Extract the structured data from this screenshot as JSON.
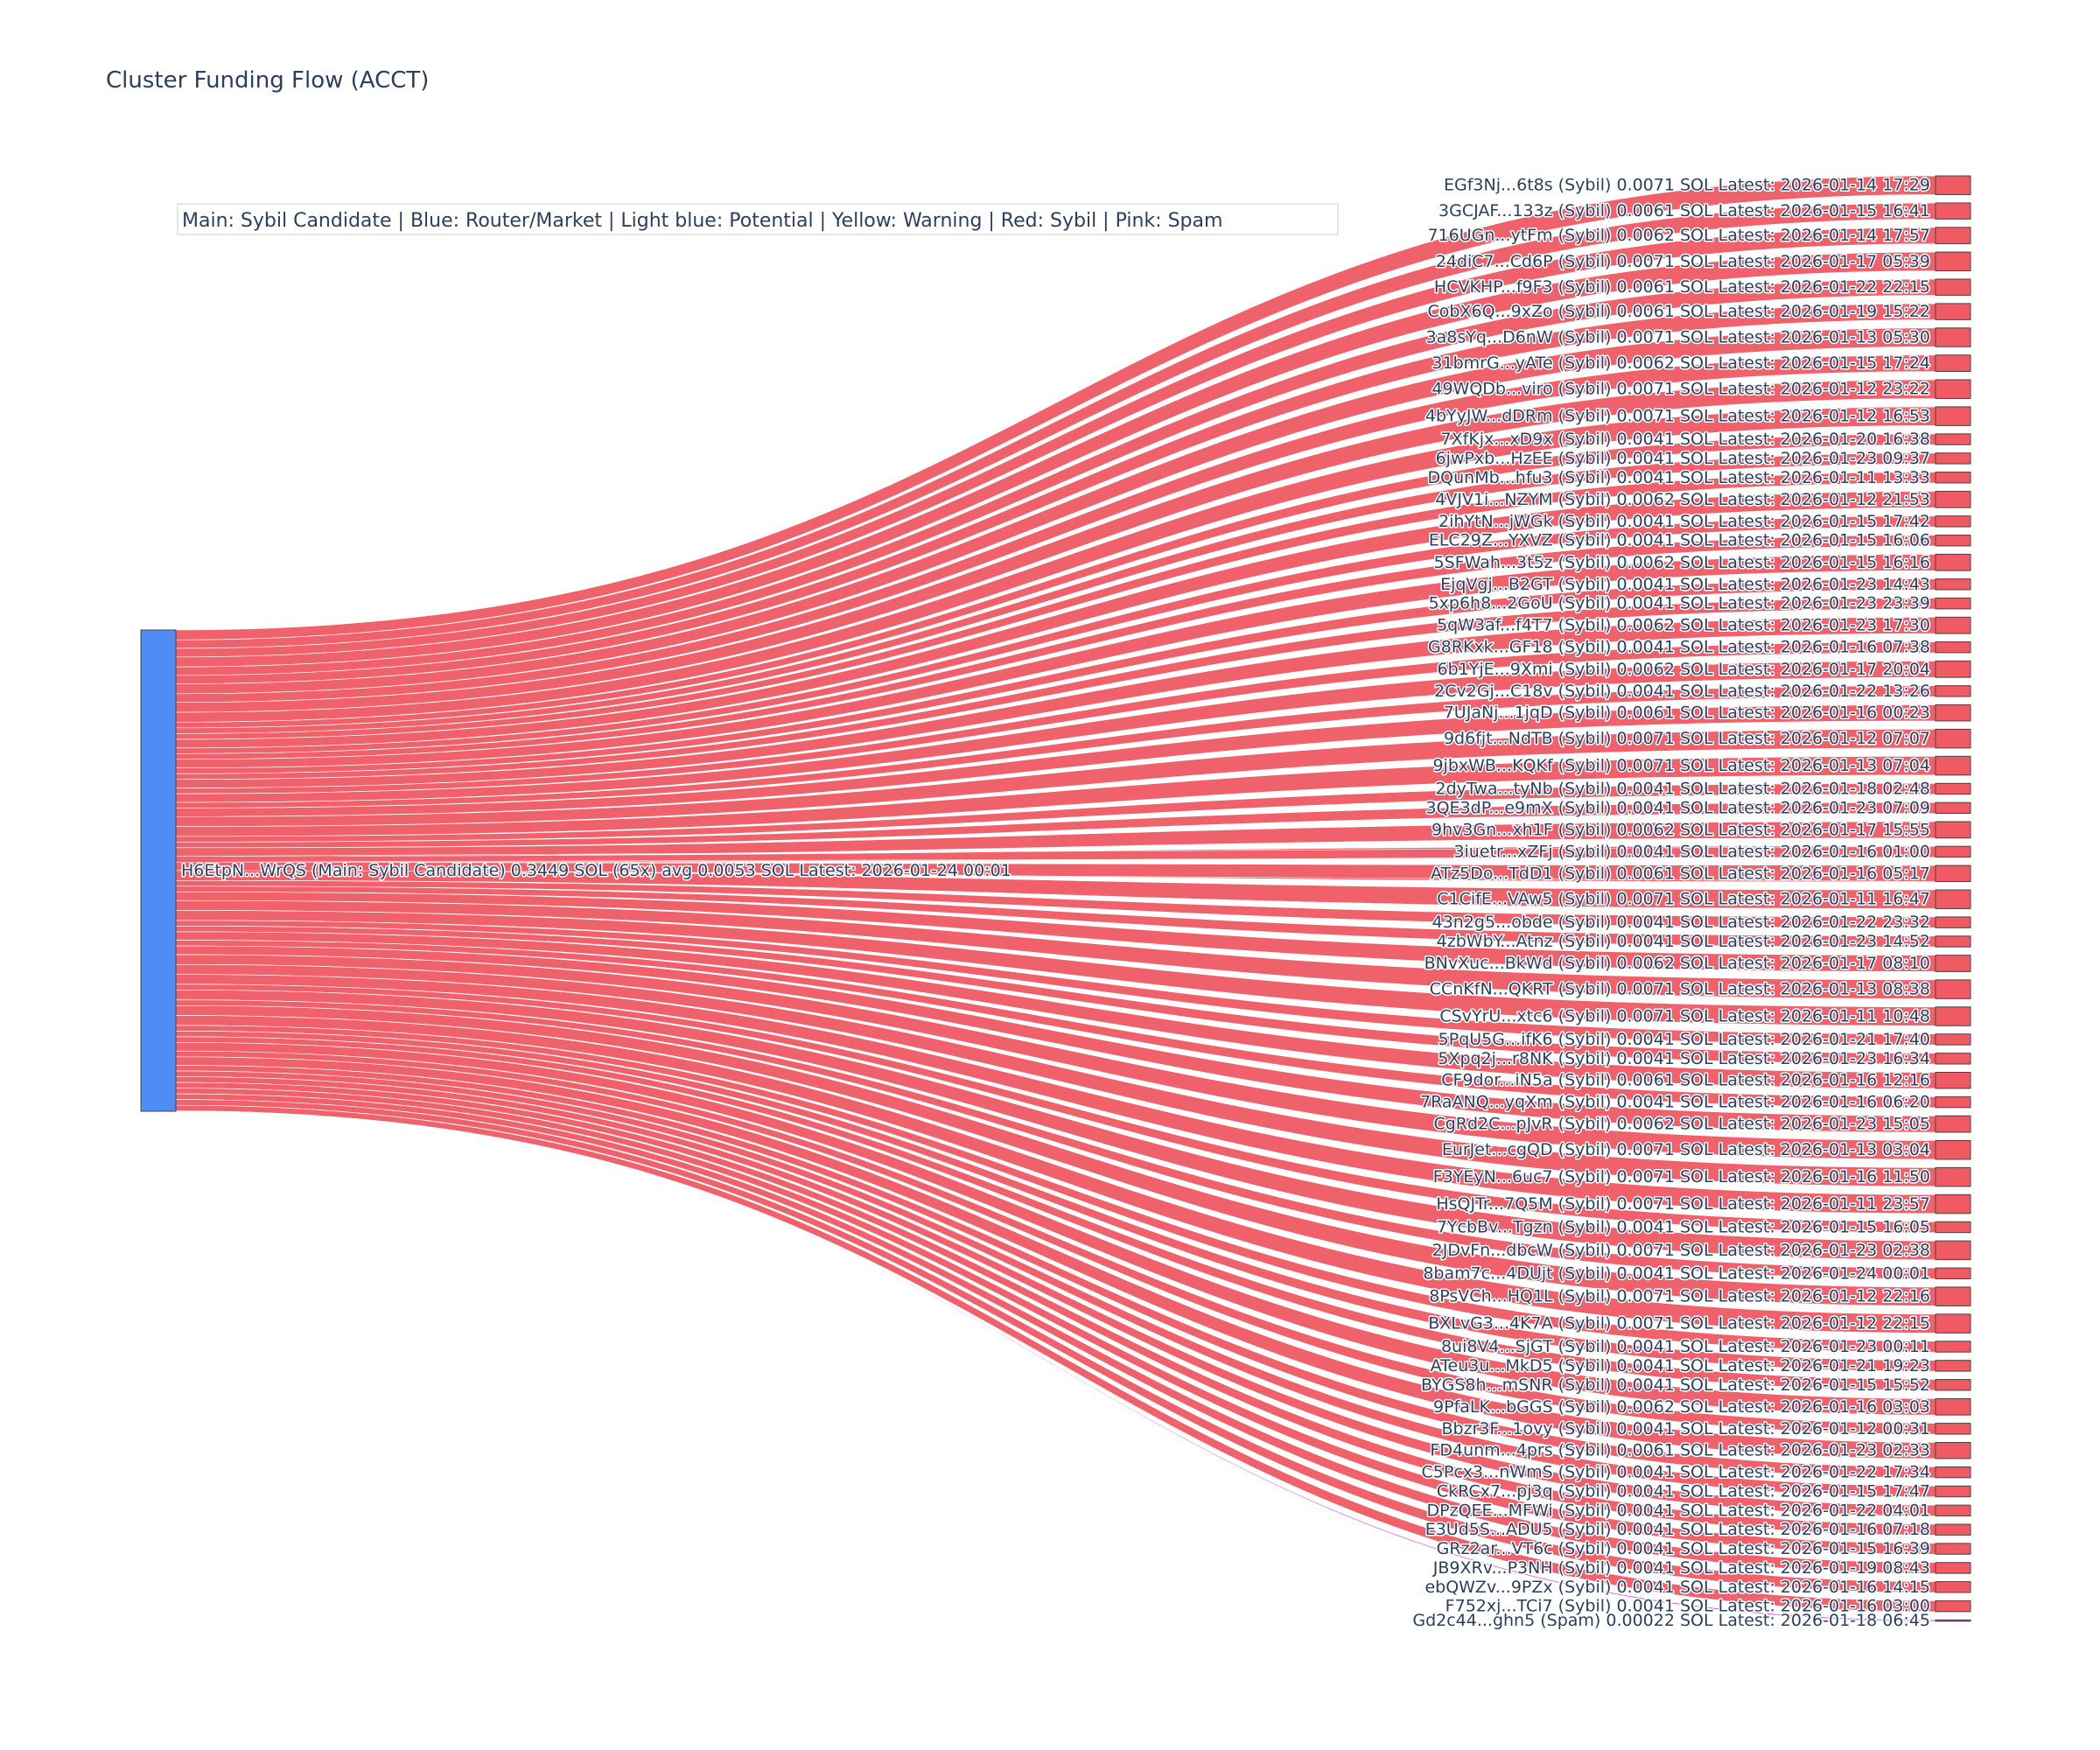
{
  "title": "Cluster Funding Flow (ACCT)",
  "legend_note": "Main: Sybil Candidate  |  Blue: Router/Market | Light blue: Potential | Yellow: Warning | Red: Sybil | Pink: Spam",
  "colors": {
    "main_node": "#4f8df5",
    "sybil": "#ef5a63",
    "spam": "#e040c8",
    "text": "#2a3f5f"
  },
  "chart_data": {
    "type": "sankey",
    "source": {
      "label": "H6EtpN...WrQS (Main: Sybil Candidate) 0.3449 SOL (65x) avg 0.0053 SOL Latest: 2026-01-24 00:01",
      "category": "Main: Sybil Candidate",
      "total_sol": 0.3449,
      "count": 65,
      "avg_sol": 0.0053
    },
    "targets": [
      {
        "label": "EGf3Nj...6t8s (Sybil) 0.0071 SOL Latest: 2026-01-14 17:29",
        "value": 0.0071,
        "category": "Sybil"
      },
      {
        "label": "3GCJAF...133z (Sybil) 0.0061 SOL Latest: 2026-01-15 16:41",
        "value": 0.0061,
        "category": "Sybil"
      },
      {
        "label": "716UGn...ytFm (Sybil) 0.0062 SOL Latest: 2026-01-14 17:57",
        "value": 0.0062,
        "category": "Sybil"
      },
      {
        "label": "24diC7...Cd6P (Sybil) 0.0071 SOL Latest: 2026-01-17 05:39",
        "value": 0.0071,
        "category": "Sybil"
      },
      {
        "label": "HCVKHP...f9F3 (Sybil) 0.0061 SOL Latest: 2026-01-22 22:15",
        "value": 0.0061,
        "category": "Sybil"
      },
      {
        "label": "CobX6Q...9xZo (Sybil) 0.0061 SOL Latest: 2026-01-19 15:22",
        "value": 0.0061,
        "category": "Sybil"
      },
      {
        "label": "3a8sYq...D6nW (Sybil) 0.0071 SOL Latest: 2026-01-13 05:30",
        "value": 0.0071,
        "category": "Sybil"
      },
      {
        "label": "31bmrG...yATe (Sybil) 0.0062 SOL Latest: 2026-01-15 17:24",
        "value": 0.0062,
        "category": "Sybil"
      },
      {
        "label": "49WQDb...viro (Sybil) 0.0071 SOL Latest: 2026-01-12 23:22",
        "value": 0.0071,
        "category": "Sybil"
      },
      {
        "label": "4bYyJW...dDRm (Sybil) 0.0071 SOL Latest: 2026-01-12 16:53",
        "value": 0.0071,
        "category": "Sybil"
      },
      {
        "label": "7XfKjx...xD9x (Sybil) 0.0041 SOL Latest: 2026-01-20 16:38",
        "value": 0.0041,
        "category": "Sybil"
      },
      {
        "label": "6jwPxb...HzEE (Sybil) 0.0041 SOL Latest: 2026-01-23 09:37",
        "value": 0.0041,
        "category": "Sybil"
      },
      {
        "label": "DQunMb...hfu3 (Sybil) 0.0041 SOL Latest: 2026-01-11 13:33",
        "value": 0.0041,
        "category": "Sybil"
      },
      {
        "label": "4VJV1i...NZYM (Sybil) 0.0062 SOL Latest: 2026-01-12 21:53",
        "value": 0.0062,
        "category": "Sybil"
      },
      {
        "label": "2ihYtN...jWGk (Sybil) 0.0041 SOL Latest: 2026-01-15 17:42",
        "value": 0.0041,
        "category": "Sybil"
      },
      {
        "label": "ELC29Z...YXVZ (Sybil) 0.0041 SOL Latest: 2026-01-15 16:06",
        "value": 0.0041,
        "category": "Sybil"
      },
      {
        "label": "5SFWah...3t5z (Sybil) 0.0062 SOL Latest: 2026-01-15 16:16",
        "value": 0.0062,
        "category": "Sybil"
      },
      {
        "label": "EjqVgj...B2GT (Sybil) 0.0041 SOL Latest: 2026-01-23 14:43",
        "value": 0.0041,
        "category": "Sybil"
      },
      {
        "label": "5xp6h8...2GoU (Sybil) 0.0041 SOL Latest: 2026-01-23 23:39",
        "value": 0.0041,
        "category": "Sybil"
      },
      {
        "label": "5qW3af...f4T7 (Sybil) 0.0062 SOL Latest: 2026-01-23 17:30",
        "value": 0.0062,
        "category": "Sybil"
      },
      {
        "label": "G8RKxk...GF18 (Sybil) 0.0041 SOL Latest: 2026-01-16 07:38",
        "value": 0.0041,
        "category": "Sybil"
      },
      {
        "label": "6b1YjE...9Xmi (Sybil) 0.0062 SOL Latest: 2026-01-17 20:04",
        "value": 0.0062,
        "category": "Sybil"
      },
      {
        "label": "2Cv2Gj...C18v (Sybil) 0.0041 SOL Latest: 2026-01-22 13:26",
        "value": 0.0041,
        "category": "Sybil"
      },
      {
        "label": "7UJaNj...1jqD (Sybil) 0.0061 SOL Latest: 2026-01-16 00:23",
        "value": 0.0061,
        "category": "Sybil"
      },
      {
        "label": "9d6fjt...NdTB (Sybil) 0.0071 SOL Latest: 2026-01-12 07:07",
        "value": 0.0071,
        "category": "Sybil"
      },
      {
        "label": "9jbxWB...KQKf (Sybil) 0.0071 SOL Latest: 2026-01-13 07:04",
        "value": 0.0071,
        "category": "Sybil"
      },
      {
        "label": "2dyTwa...tyNb (Sybil) 0.0041 SOL Latest: 2026-01-18 02:48",
        "value": 0.0041,
        "category": "Sybil"
      },
      {
        "label": "3QE3dP...e9mX (Sybil) 0.0041 SOL Latest: 2026-01-23 07:09",
        "value": 0.0041,
        "category": "Sybil"
      },
      {
        "label": "9hv3Gn...xh1F (Sybil) 0.0062 SOL Latest: 2026-01-17 15:55",
        "value": 0.0062,
        "category": "Sybil"
      },
      {
        "label": "3iuetr...xZFj (Sybil) 0.0041 SOL Latest: 2026-01-16 01:00",
        "value": 0.0041,
        "category": "Sybil"
      },
      {
        "label": "ATz5Do...TdD1 (Sybil) 0.0061 SOL Latest: 2026-01-16 05:17",
        "value": 0.0061,
        "category": "Sybil"
      },
      {
        "label": "C1CifE...VAw5 (Sybil) 0.0071 SOL Latest: 2026-01-11 16:47",
        "value": 0.0071,
        "category": "Sybil"
      },
      {
        "label": "43n2g5...obde (Sybil) 0.0041 SOL Latest: 2026-01-22 23:32",
        "value": 0.0041,
        "category": "Sybil"
      },
      {
        "label": "4zbWbY...Atnz (Sybil) 0.0041 SOL Latest: 2026-01-23 14:52",
        "value": 0.0041,
        "category": "Sybil"
      },
      {
        "label": "BNvXuc...BkWd (Sybil) 0.0062 SOL Latest: 2026-01-17 08:10",
        "value": 0.0062,
        "category": "Sybil"
      },
      {
        "label": "CCnKfN...QKRT (Sybil) 0.0071 SOL Latest: 2026-01-13 08:38",
        "value": 0.0071,
        "category": "Sybil"
      },
      {
        "label": "CSvYrU...xtc6 (Sybil) 0.0071 SOL Latest: 2026-01-11 10:48",
        "value": 0.0071,
        "category": "Sybil"
      },
      {
        "label": "5PqU5G...ifK6 (Sybil) 0.0041 SOL Latest: 2026-01-21 17:40",
        "value": 0.0041,
        "category": "Sybil"
      },
      {
        "label": "5Xpq2j...r8NK (Sybil) 0.0041 SOL Latest: 2026-01-23 16:34",
        "value": 0.0041,
        "category": "Sybil"
      },
      {
        "label": "CF9dor...iN5a (Sybil) 0.0061 SOL Latest: 2026-01-16 12:16",
        "value": 0.0061,
        "category": "Sybil"
      },
      {
        "label": "7RaANQ...yqXm (Sybil) 0.0041 SOL Latest: 2026-01-16 06:20",
        "value": 0.0041,
        "category": "Sybil"
      },
      {
        "label": "CgRd2C...pJvR (Sybil) 0.0062 SOL Latest: 2026-01-23 15:05",
        "value": 0.0062,
        "category": "Sybil"
      },
      {
        "label": "EurJet...cgQD (Sybil) 0.0071 SOL Latest: 2026-01-13 03:04",
        "value": 0.0071,
        "category": "Sybil"
      },
      {
        "label": "F3YEyN...6uc7 (Sybil) 0.0071 SOL Latest: 2026-01-16 11:50",
        "value": 0.0071,
        "category": "Sybil"
      },
      {
        "label": "HsQJTr...7Q5M (Sybil) 0.0071 SOL Latest: 2026-01-11 23:57",
        "value": 0.0071,
        "category": "Sybil"
      },
      {
        "label": "7YcbBv...Tgzn (Sybil) 0.0041 SOL Latest: 2026-01-15 16:05",
        "value": 0.0041,
        "category": "Sybil"
      },
      {
        "label": "2JDvFn...dbcW (Sybil) 0.0071 SOL Latest: 2026-01-23 02:38",
        "value": 0.0071,
        "category": "Sybil"
      },
      {
        "label": "8bam7c...4DUjt (Sybil) 0.0041 SOL Latest: 2026-01-24 00:01",
        "value": 0.0041,
        "category": "Sybil"
      },
      {
        "label": "8PsVCh...HQ1L (Sybil) 0.0071 SOL Latest: 2026-01-12 22:16",
        "value": 0.0071,
        "category": "Sybil"
      },
      {
        "label": "BXLvG3...4K7A (Sybil) 0.0071 SOL Latest: 2026-01-12 22:15",
        "value": 0.0071,
        "category": "Sybil"
      },
      {
        "label": "8ui8V4...SjGT (Sybil) 0.0041 SOL Latest: 2026-01-23 00:11",
        "value": 0.0041,
        "category": "Sybil"
      },
      {
        "label": "ATeu3u...MkD5 (Sybil) 0.0041 SOL Latest: 2026-01-21 19:23",
        "value": 0.0041,
        "category": "Sybil"
      },
      {
        "label": "BYGS8h...mSNR (Sybil) 0.0041 SOL Latest: 2026-01-15 15:52",
        "value": 0.0041,
        "category": "Sybil"
      },
      {
        "label": "9PfaLK...bGGS (Sybil) 0.0062 SOL Latest: 2026-01-16 03:03",
        "value": 0.0062,
        "category": "Sybil"
      },
      {
        "label": "Bbzr3F...1ovy (Sybil) 0.0041 SOL Latest: 2026-01-12 00:31",
        "value": 0.0041,
        "category": "Sybil"
      },
      {
        "label": "FD4unm...4prs (Sybil) 0.0061 SOL Latest: 2026-01-23 02:33",
        "value": 0.0061,
        "category": "Sybil"
      },
      {
        "label": "C5Pcx3...nWmS (Sybil) 0.0041 SOL Latest: 2026-01-22 17:34",
        "value": 0.0041,
        "category": "Sybil"
      },
      {
        "label": "CkRCx7...pj3q (Sybil) 0.0041 SOL Latest: 2026-01-15 17:47",
        "value": 0.0041,
        "category": "Sybil"
      },
      {
        "label": "DPzQEE...MFWi (Sybil) 0.0041 SOL Latest: 2026-01-22 04:01",
        "value": 0.0041,
        "category": "Sybil"
      },
      {
        "label": "E3Ud5S...ADU5 (Sybil) 0.0041 SOL Latest: 2026-01-16 07:18",
        "value": 0.0041,
        "category": "Sybil"
      },
      {
        "label": "GRz2ar...VT6c (Sybil) 0.0041 SOL Latest: 2026-01-15 16:39",
        "value": 0.0041,
        "category": "Sybil"
      },
      {
        "label": "JB9XRv...P3NH (Sybil) 0.0041 SOL Latest: 2026-01-19 08:43",
        "value": 0.0041,
        "category": "Sybil"
      },
      {
        "label": "ebQWZv...9PZx (Sybil) 0.0041 SOL Latest: 2026-01-16 14:15",
        "value": 0.0041,
        "category": "Sybil"
      },
      {
        "label": "F752xj...TCi7 (Sybil) 0.0041 SOL Latest: 2026-01-16 03:00",
        "value": 0.0041,
        "category": "Sybil"
      },
      {
        "label": "Gd2c44...ghn5 (Spam) 0.00022 SOL Latest: 2026-01-18 06:45",
        "value": 0.00022,
        "category": "Spam"
      }
    ]
  }
}
